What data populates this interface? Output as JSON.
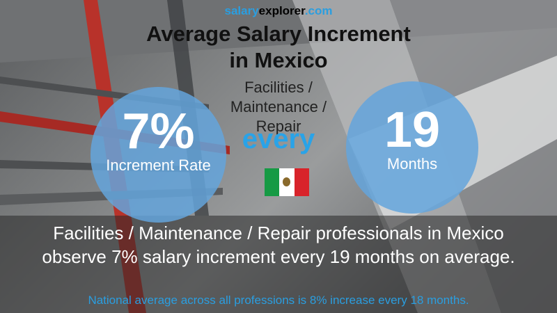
{
  "brand": {
    "part1": "salary",
    "part2": "explorer",
    "part3": ".com"
  },
  "title": {
    "line1": "Average Salary Increment",
    "line2": "in Mexico"
  },
  "subtitle": {
    "line1": "Facilities /",
    "line2": "Maintenance /",
    "line3": "Repair"
  },
  "increment": {
    "value": "7%",
    "label": "Increment Rate"
  },
  "connector": "every",
  "period": {
    "value": "19",
    "label": "Months"
  },
  "flag": {
    "country": "Mexico",
    "colors": [
      "#169a44",
      "#ffffff",
      "#d8232a"
    ]
  },
  "summary": {
    "line1": "Facilities / Maintenance / Repair professionals in Mexico",
    "line2": "observe 7% salary increment every 19 months on average."
  },
  "footnote": "National average across all professions is 8% increase every 18 months.",
  "colors": {
    "accent": "#2a9ee0",
    "circle": "#64a5dc"
  }
}
